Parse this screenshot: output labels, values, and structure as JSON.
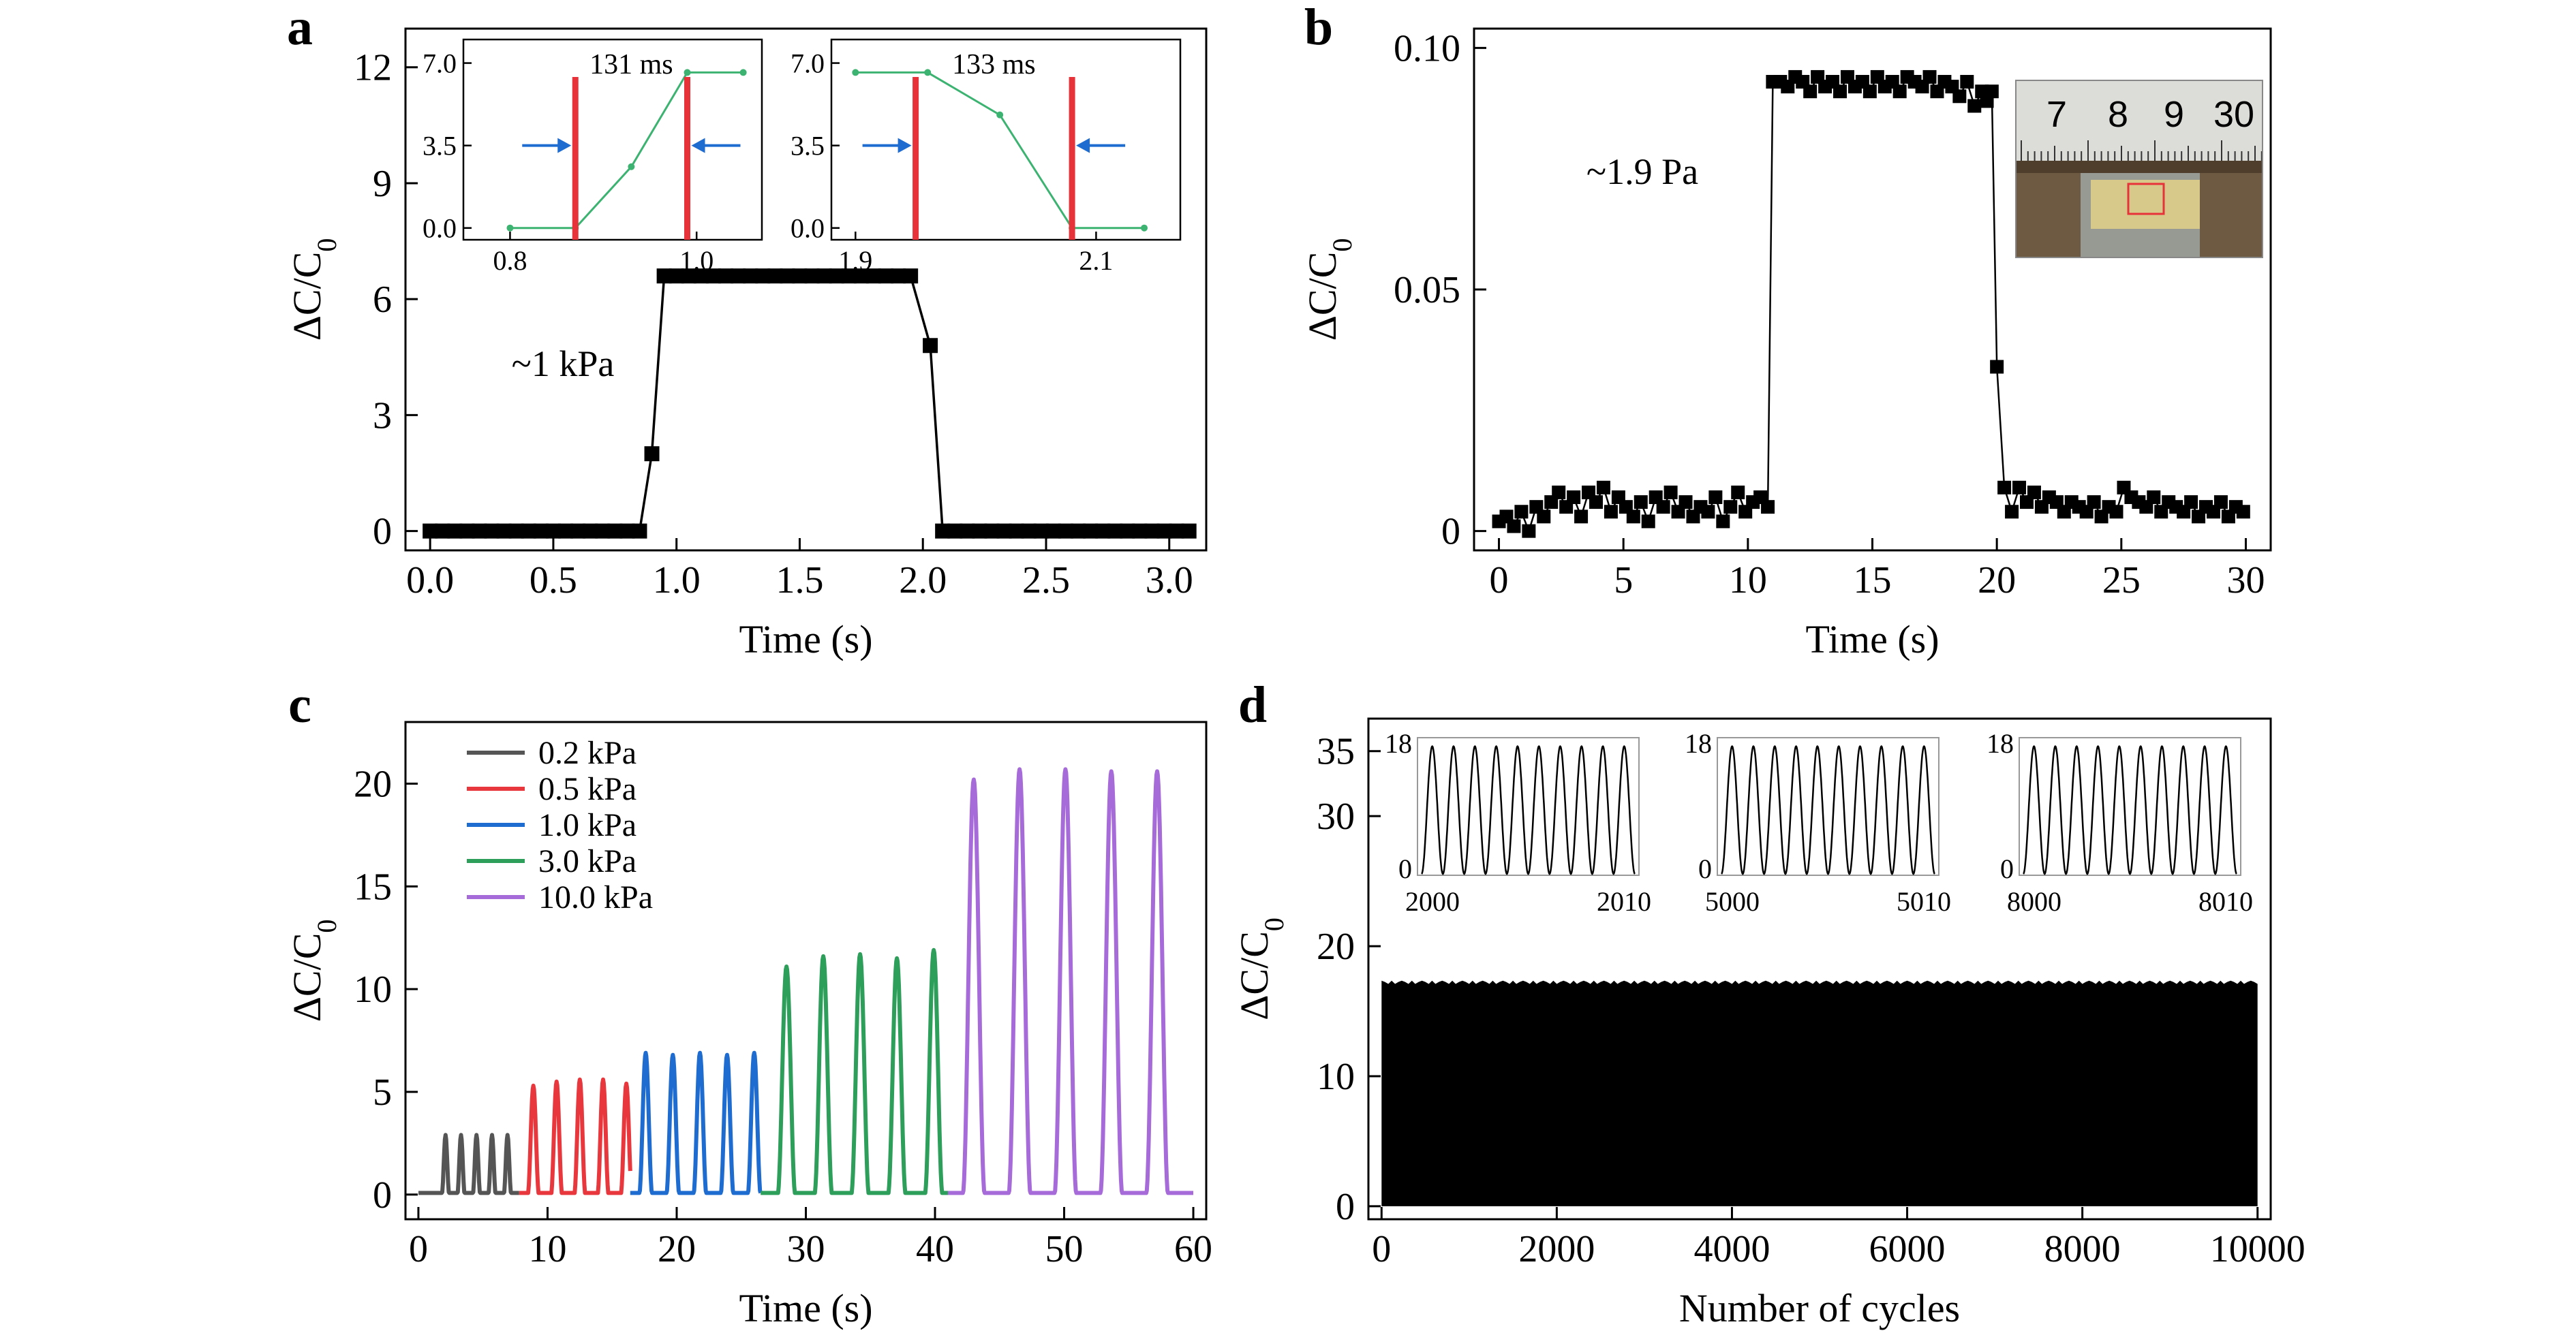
{
  "chart_data": [
    {
      "panel": "a",
      "type": "line",
      "xlabel": "Time (s)",
      "ylabel": "ΔC/C0",
      "xlim": [
        -0.1,
        3.15
      ],
      "ylim": [
        -0.5,
        13
      ],
      "xticks": [
        0.0,
        0.5,
        1.0,
        1.5,
        2.0,
        2.5,
        3.0
      ],
      "xtick_labels": [
        "0.0",
        "0.5",
        "1.0",
        "1.5",
        "2.0",
        "2.5",
        "3.0"
      ],
      "yticks": [
        0,
        3,
        6,
        9,
        12
      ],
      "ytick_labels": [
        "0",
        "3",
        "6",
        "9",
        "12"
      ],
      "annotation": "~1 kPa",
      "series": [
        {
          "x": [
            0.0,
            0.05,
            0.1,
            0.15,
            0.2,
            0.25,
            0.3,
            0.35,
            0.4,
            0.45,
            0.5,
            0.55,
            0.6,
            0.65,
            0.7,
            0.75,
            0.8,
            0.85,
            0.9,
            0.95,
            1.0,
            1.05,
            1.1,
            1.15,
            1.2,
            1.25,
            1.3,
            1.35,
            1.4,
            1.45,
            1.5,
            1.55,
            1.6,
            1.65,
            1.7,
            1.75,
            1.8,
            1.85,
            1.9,
            1.95,
            2.03,
            2.08,
            2.13,
            2.18,
            2.23,
            2.28,
            2.33,
            2.38,
            2.43,
            2.48,
            2.53,
            2.58,
            2.63,
            2.68,
            2.73,
            2.78,
            2.83,
            2.88,
            2.93,
            2.98,
            3.03,
            3.08
          ],
          "y": [
            0,
            0,
            0,
            0,
            0,
            0,
            0,
            0,
            0,
            0,
            0,
            0,
            0,
            0,
            0,
            0,
            0,
            0,
            2.0,
            6.6,
            6.6,
            6.6,
            6.6,
            6.6,
            6.6,
            6.6,
            6.6,
            6.6,
            6.6,
            6.6,
            6.6,
            6.6,
            6.6,
            6.6,
            6.6,
            6.6,
            6.6,
            6.6,
            6.6,
            6.6,
            4.8,
            0,
            0,
            0,
            0,
            0,
            0,
            0,
            0,
            0,
            0,
            0,
            0,
            0,
            0,
            0,
            0,
            0,
            0,
            0,
            0,
            0
          ]
        }
      ],
      "insets": [
        {
          "type": "line",
          "title": "131 ms",
          "xlim": [
            0.75,
            1.07
          ],
          "ylim": [
            -0.5,
            8.0
          ],
          "xticks": [
            0.8,
            1.0
          ],
          "xtick_labels": [
            "0.8",
            "1.0"
          ],
          "yticks": [
            0.0,
            3.5,
            7.0
          ],
          "ytick_labels": [
            "0.0",
            "3.5",
            "7.0"
          ],
          "x": [
            0.8,
            0.87,
            0.93,
            0.99,
            1.05
          ],
          "y": [
            0.0,
            0.0,
            2.6,
            6.6,
            6.6
          ],
          "markers_x": [
            0.87,
            0.99
          ]
        },
        {
          "type": "line",
          "title": "133 ms",
          "xlim": [
            1.88,
            2.17
          ],
          "ylim": [
            -0.5,
            8.0
          ],
          "xticks": [
            1.9,
            2.1
          ],
          "xtick_labels": [
            "1.9",
            "2.1"
          ],
          "yticks": [
            0.0,
            3.5,
            7.0
          ],
          "ytick_labels": [
            "0.0",
            "3.5",
            "7.0"
          ],
          "x": [
            1.9,
            1.96,
            2.02,
            2.08,
            2.14
          ],
          "y": [
            6.6,
            6.6,
            4.8,
            0.0,
            0.0
          ],
          "markers_x": [
            1.95,
            2.08
          ]
        }
      ]
    },
    {
      "panel": "b",
      "type": "scatter",
      "xlabel": "Time (s)",
      "ylabel": "ΔC/C0",
      "xlim": [
        -1.0,
        31.0
      ],
      "ylim": [
        -0.004,
        0.104
      ],
      "xticks": [
        0,
        5,
        10,
        15,
        20,
        25,
        30
      ],
      "xtick_labels": [
        "0",
        "5",
        "10",
        "15",
        "20",
        "25",
        "30"
      ],
      "yticks": [
        0,
        0.05,
        0.1
      ],
      "ytick_labels": [
        "0",
        "0.05",
        "0.10"
      ],
      "annotation": "~1.9 Pa",
      "series": [
        {
          "x": [
            0.0,
            0.3,
            0.6,
            0.9,
            1.2,
            1.5,
            1.8,
            2.1,
            2.4,
            2.7,
            3.0,
            3.3,
            3.6,
            3.9,
            4.2,
            4.5,
            4.8,
            5.1,
            5.4,
            5.7,
            6.0,
            6.3,
            6.6,
            6.9,
            7.2,
            7.5,
            7.8,
            8.1,
            8.4,
            8.7,
            9.0,
            9.3,
            9.6,
            9.9,
            10.2,
            10.5,
            10.8,
            11.0,
            11.3,
            11.6,
            11.9,
            12.2,
            12.5,
            12.8,
            13.1,
            13.4,
            13.7,
            14.0,
            14.3,
            14.6,
            14.9,
            15.2,
            15.5,
            15.8,
            16.1,
            16.4,
            16.7,
            17.0,
            17.3,
            17.6,
            17.9,
            18.2,
            18.5,
            18.8,
            19.1,
            19.4,
            19.6,
            19.8,
            20.0,
            20.3,
            20.6,
            20.9,
            21.2,
            21.5,
            21.8,
            22.1,
            22.4,
            22.7,
            23.0,
            23.3,
            23.6,
            23.9,
            24.2,
            24.5,
            24.8,
            25.1,
            25.4,
            25.7,
            26.0,
            26.3,
            26.6,
            26.9,
            27.2,
            27.5,
            27.8,
            28.1,
            28.4,
            28.7,
            29.0,
            29.3,
            29.6,
            29.9
          ],
          "y": [
            0.002,
            0.003,
            0.001,
            0.004,
            0.0,
            0.005,
            0.003,
            0.006,
            0.008,
            0.005,
            0.007,
            0.003,
            0.008,
            0.006,
            0.009,
            0.004,
            0.007,
            0.005,
            0.003,
            0.006,
            0.002,
            0.007,
            0.005,
            0.008,
            0.004,
            0.006,
            0.003,
            0.005,
            0.004,
            0.007,
            0.002,
            0.005,
            0.008,
            0.004,
            0.006,
            0.007,
            0.005,
            0.093,
            0.093,
            0.092,
            0.094,
            0.093,
            0.091,
            0.094,
            0.092,
            0.093,
            0.091,
            0.094,
            0.092,
            0.093,
            0.091,
            0.094,
            0.092,
            0.093,
            0.091,
            0.094,
            0.093,
            0.092,
            0.094,
            0.091,
            0.093,
            0.092,
            0.09,
            0.093,
            0.088,
            0.091,
            0.089,
            0.091,
            0.034,
            0.009,
            0.004,
            0.009,
            0.006,
            0.008,
            0.005,
            0.007,
            0.006,
            0.004,
            0.006,
            0.005,
            0.004,
            0.006,
            0.003,
            0.005,
            0.004,
            0.009,
            0.007,
            0.006,
            0.005,
            0.007,
            0.004,
            0.006,
            0.005,
            0.004,
            0.006,
            0.003,
            0.005,
            0.004,
            0.006,
            0.003,
            0.005,
            0.004
          ]
        }
      ],
      "photo_ruler_labels": [
        "7",
        "8",
        "9",
        "30"
      ]
    },
    {
      "panel": "c",
      "type": "line",
      "xlabel": "Time (s)",
      "ylabel": "ΔC/C0",
      "xlim": [
        -1.0,
        61.0
      ],
      "ylim": [
        -1.2,
        23.0
      ],
      "xticks": [
        0,
        10,
        20,
        30,
        40,
        50,
        60
      ],
      "xtick_labels": [
        "0",
        "10",
        "20",
        "30",
        "40",
        "50",
        "60"
      ],
      "yticks": [
        0,
        5,
        10,
        15,
        20
      ],
      "ytick_labels": [
        "0",
        "5",
        "10",
        "15",
        "20"
      ],
      "legend_position": "top-left",
      "series": [
        {
          "name": "0.2 kPa",
          "color": "#555555",
          "t_start": 0.0,
          "t_end": 7.8,
          "first_peak": 2.1,
          "period": 1.2,
          "n_peaks": 5,
          "peaks": [
            2.9,
            2.9,
            2.9,
            2.9,
            2.9
          ]
        },
        {
          "name": "0.5 kPa",
          "color": "#e8383d",
          "t_start": 7.8,
          "t_end": 16.4,
          "first_peak": 8.9,
          "period": 1.8,
          "n_peaks": 5,
          "peaks": [
            5.3,
            5.5,
            5.6,
            5.6,
            5.4
          ]
        },
        {
          "name": "1.0 kPa",
          "color": "#1f6cd1",
          "t_start": 16.4,
          "t_end": 26.5,
          "first_peak": 17.6,
          "period": 2.1,
          "n_peaks": 5,
          "peaks": [
            6.9,
            6.8,
            6.9,
            6.8,
            6.9
          ]
        },
        {
          "name": "3.0 kPa",
          "color": "#2e9e5b",
          "t_start": 26.5,
          "t_end": 41.0,
          "first_peak": 28.5,
          "period": 2.85,
          "n_peaks": 5,
          "peaks": [
            11.1,
            11.6,
            11.7,
            11.5,
            11.9
          ]
        },
        {
          "name": "10.0 kPa",
          "color": "#a66bd9",
          "t_start": 41.0,
          "t_end": 60.0,
          "first_peak": 43.0,
          "period": 3.55,
          "n_peaks": 5,
          "peaks": [
            20.2,
            20.7,
            20.7,
            20.6,
            20.6
          ]
        }
      ]
    },
    {
      "panel": "d",
      "type": "area",
      "xlabel": "Number of cycles",
      "ylabel": "ΔC/C0",
      "xlim": [
        -150,
        10150
      ],
      "ylim": [
        -1.0,
        37.5
      ],
      "xticks": [
        0,
        2000,
        4000,
        6000,
        8000,
        10000
      ],
      "xtick_labels": [
        "0",
        "2000",
        "4000",
        "6000",
        "8000",
        "10000"
      ],
      "yticks": [
        0,
        10,
        20,
        30,
        35
      ],
      "ytick_labels": [
        "0",
        "10",
        "20",
        "30",
        "35"
      ],
      "envelope": {
        "x": [
          0,
          10000
        ],
        "y_min": 0,
        "y_max": 17.2
      },
      "insets": [
        {
          "xlim": [
            2000,
            2010
          ],
          "ylim": [
            0,
            18
          ],
          "xtick_labels": [
            "2000",
            "2010"
          ],
          "ytick_labels": [
            "0",
            "18"
          ],
          "cycles": 10,
          "peak": 17.2
        },
        {
          "xlim": [
            5000,
            5010
          ],
          "ylim": [
            0,
            18
          ],
          "xtick_labels": [
            "5000",
            "5010"
          ],
          "ytick_labels": [
            "0",
            "18"
          ],
          "cycles": 10,
          "peak": 17.2
        },
        {
          "xlim": [
            8000,
            8010
          ],
          "ylim": [
            0,
            18
          ],
          "xtick_labels": [
            "8000",
            "8010"
          ],
          "ytick_labels": [
            "0",
            "18"
          ],
          "cycles": 10,
          "peak": 17.2
        }
      ]
    }
  ],
  "panel_labels": [
    "a",
    "b",
    "c",
    "d"
  ]
}
